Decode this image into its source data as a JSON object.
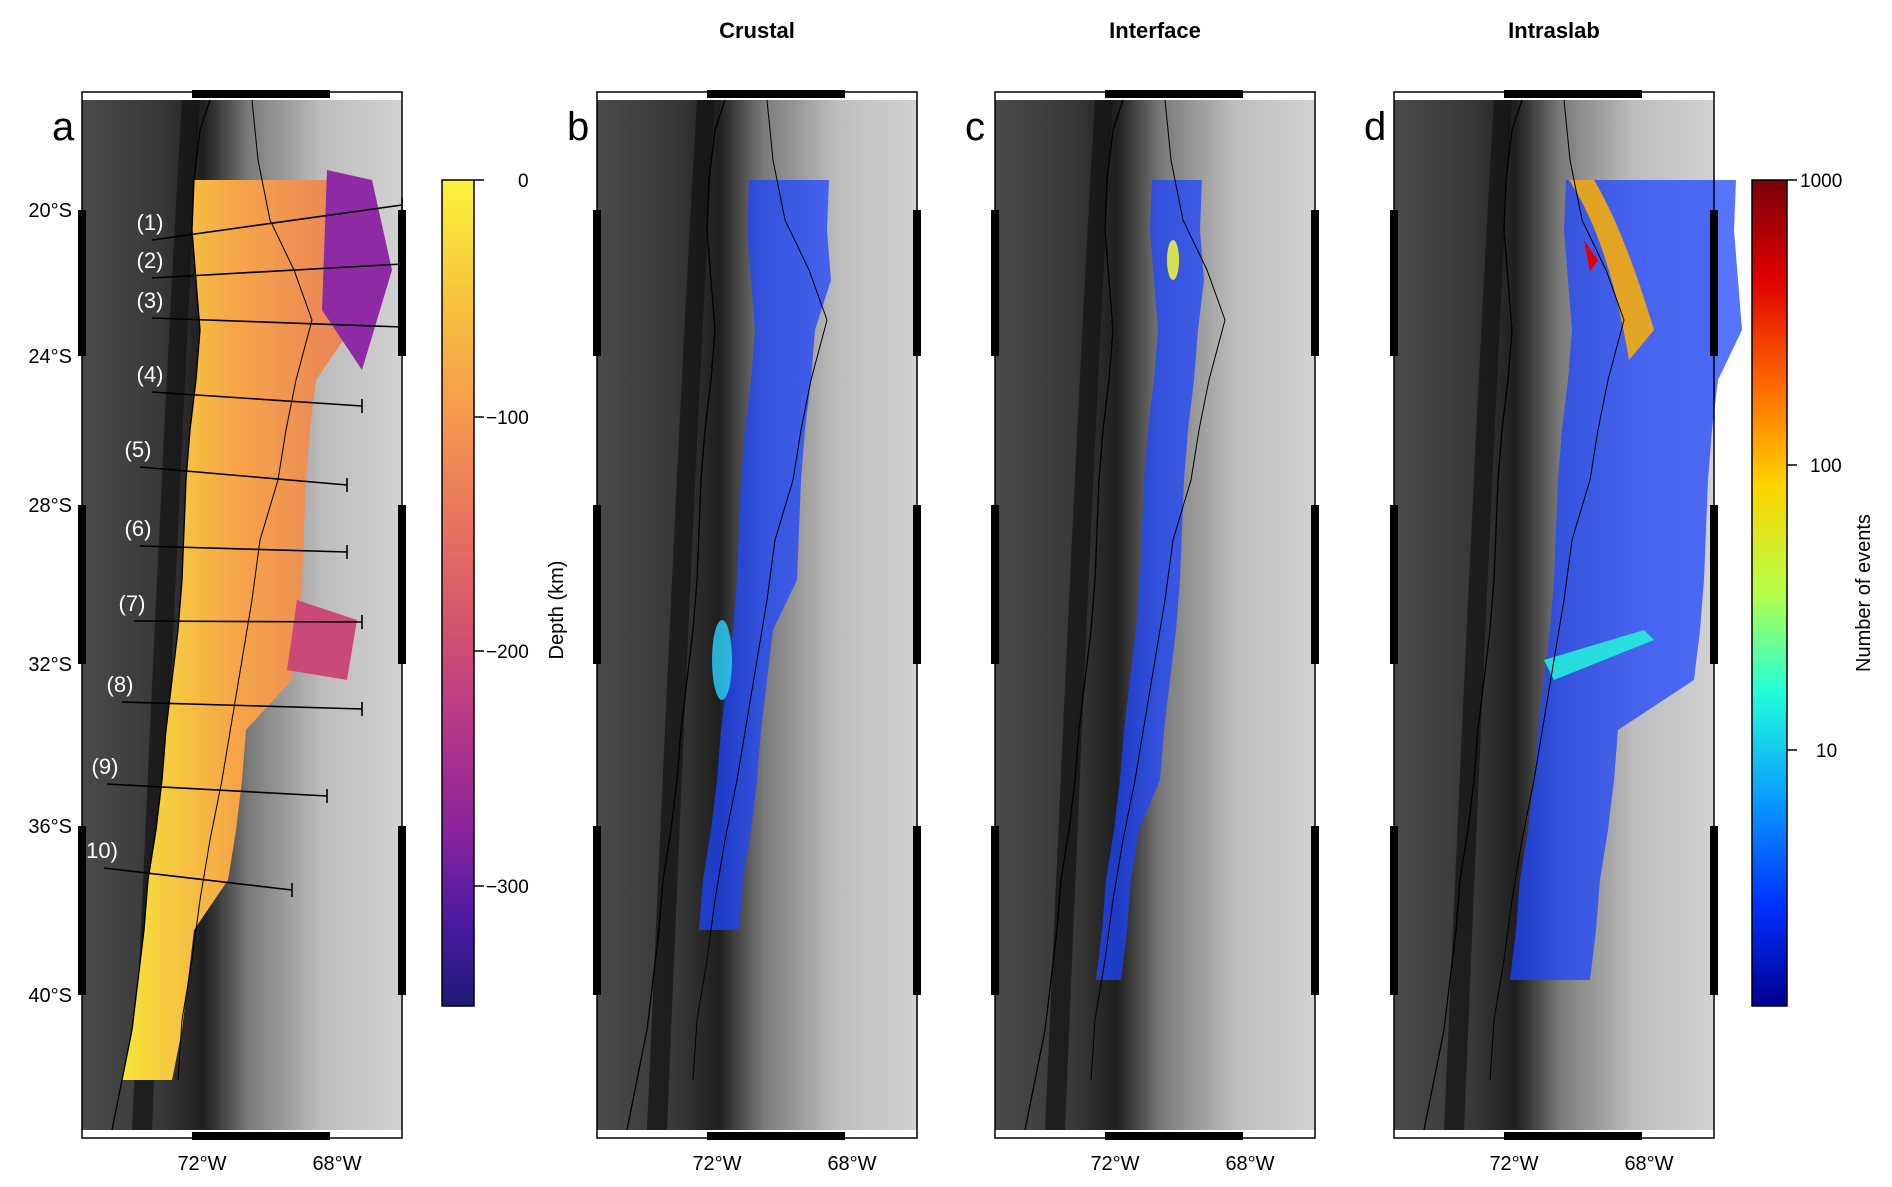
{
  "panels": [
    {
      "letter": "a",
      "title": ""
    },
    {
      "letter": "b",
      "title": "Crustal"
    },
    {
      "letter": "c",
      "title": "Interface"
    },
    {
      "letter": "d",
      "title": "Intraslab"
    }
  ],
  "lat_ticks": [
    "20°S",
    "24°S",
    "28°S",
    "32°S",
    "36°S",
    "40°S"
  ],
  "lon_ticks": [
    "72°W",
    "68°W"
  ],
  "profiles": [
    "(1)",
    "(2)",
    "(3)",
    "(4)",
    "(5)",
    "(6)",
    "(7)",
    "(8)",
    "(9)",
    "10)"
  ],
  "depth_colorbar": {
    "label": "Depth (km)",
    "ticks": [
      "0",
      "−100",
      "−200",
      "−300"
    ],
    "colors": [
      "#fbf33b",
      "#f8c43c",
      "#f59b4e",
      "#e7725e",
      "#cf4f73",
      "#b0348b",
      "#84229e",
      "#4a1aa0",
      "#1e1a78"
    ]
  },
  "count_colorbar": {
    "label": "Number of events",
    "ticks": [
      "1000",
      "100",
      "10"
    ],
    "scale": "log",
    "colors": [
      "#78000a",
      "#e00000",
      "#ff6a00",
      "#ffd400",
      "#b5ff49",
      "#22ffd9",
      "#0a9bff",
      "#0030ff",
      "#00008f"
    ]
  },
  "colors": {
    "ocean_dark": "#222222",
    "land_light": "#bdbdbd",
    "density_blue": "#1f46ff"
  }
}
